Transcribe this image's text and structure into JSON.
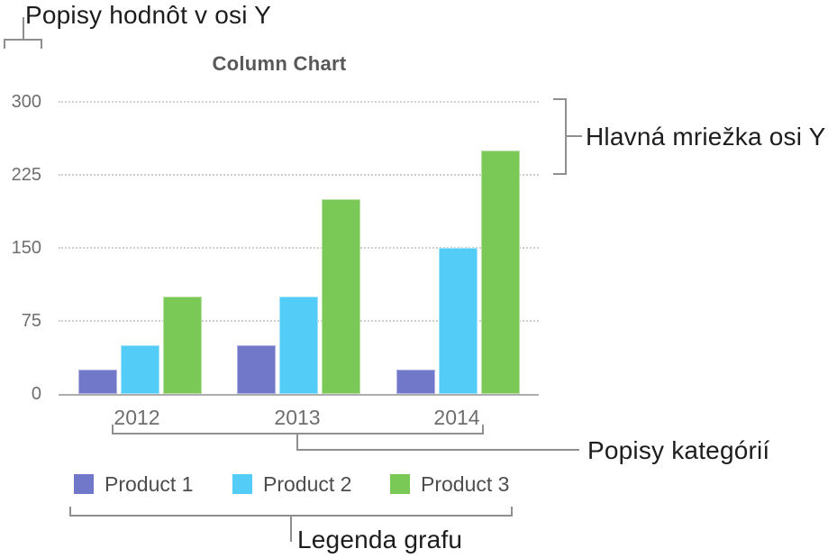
{
  "annotations": {
    "y_value_labels": {
      "text": "Popisy hodnôt v osi Y"
    },
    "y_gridlines": {
      "text": "Hlavná mriežka osi Y"
    },
    "category_labels": {
      "text": "Popisy kategórií"
    },
    "chart_legend": {
      "text": "Legenda grafu"
    }
  },
  "chart_data": {
    "type": "bar",
    "title": "Column Chart",
    "categories": [
      "2012",
      "2013",
      "2014"
    ],
    "series": [
      {
        "name": "Product 1",
        "color": "#7177c9",
        "values": [
          25,
          50,
          25
        ]
      },
      {
        "name": "Product 2",
        "color": "#53cdf8",
        "values": [
          50,
          100,
          150
        ]
      },
      {
        "name": "Product 3",
        "color": "#7ac957",
        "values": [
          100,
          200,
          250
        ]
      }
    ],
    "xlabel": "",
    "ylabel": "",
    "ylim": [
      0,
      300
    ],
    "yticks": [
      0,
      75,
      150,
      225,
      300
    ],
    "grid": "horizontal-dotted",
    "legend_position": "bottom"
  },
  "colors": {
    "annotation_text": "#1d1d1f",
    "bracket": "#8f8f8f",
    "title_text": "#58585a",
    "axis_text": "#6e6e6e",
    "gridline": "#cfcfcf",
    "axis_line": "#adadad",
    "legend_text": "#4d4d4d"
  }
}
